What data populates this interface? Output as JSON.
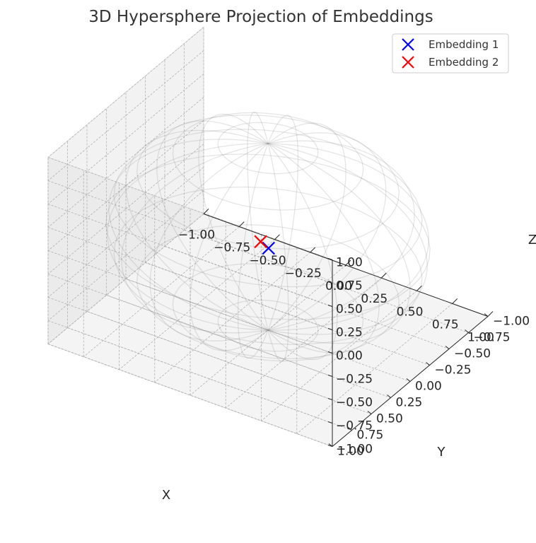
{
  "chart_data": {
    "type": "scatter",
    "projection": "3d",
    "title": "3D Hypersphere Projection of Embeddings",
    "xlabel": "X",
    "ylabel": "Y",
    "zlabel": "Z",
    "xlim": [
      -1.0,
      1.0
    ],
    "ylim": [
      -1.0,
      1.0
    ],
    "zlim": [
      -1.0,
      1.0
    ],
    "ticks": [
      "−1.00",
      "−0.75",
      "−0.50",
      "−0.25",
      "0.00",
      "0.25",
      "0.50",
      "0.75",
      "1.00"
    ],
    "grid": true,
    "legend_position": "top-right",
    "sphere": {
      "radius": 1.0,
      "style": "wireframe",
      "color": "#888888"
    },
    "series": [
      {
        "name": "Embedding 1",
        "marker": "x",
        "color": "#0000ff",
        "x": 0.02,
        "y": 0.03,
        "z": -0.09
      },
      {
        "name": "Embedding 2",
        "marker": "x",
        "color": "#ff0000",
        "x": -0.03,
        "y": 0.04,
        "z": -0.04
      }
    ]
  }
}
